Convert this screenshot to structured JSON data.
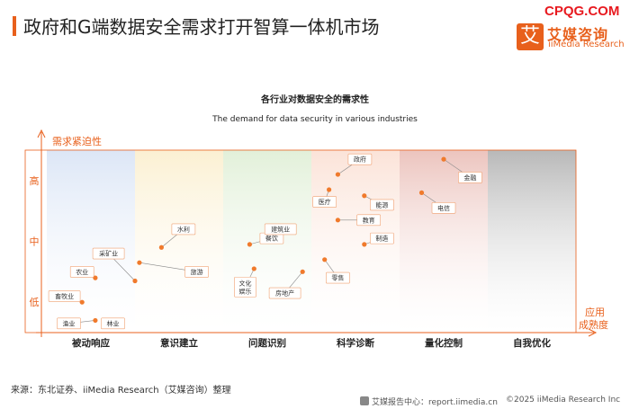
{
  "header": {
    "title": "政府和G端数据安全需求打开智算一体机市场",
    "watermark": "CPQG.COM",
    "logo_char": "艾",
    "logo_cn": "艾媒咨询",
    "logo_en": "iiMedia Research"
  },
  "colors": {
    "accent": "#e8601c",
    "band_1": "#dce6f6",
    "band_2": "#fbf0d2",
    "band_3": "#e2f0d9",
    "band_4": "#fbe3d8",
    "band_5": "#ecc4be",
    "band_6": "#b8b8b8",
    "point": "#f07a2c",
    "label_border": "#f0a070"
  },
  "chart_data": {
    "type": "scatter",
    "title": "各行业对数据安全的需求性",
    "subtitle": "The demand for data security in various industries",
    "ylabel": "需求紧迫性",
    "xlabel_line1": "应用",
    "xlabel_line2": "成熟度",
    "x_categories": [
      "被动响应",
      "意识建立",
      "问题识别",
      "科学诊断",
      "量化控制",
      "自我优化"
    ],
    "y_levels": [
      "低",
      "中",
      "高"
    ],
    "xlim": [
      0,
      6
    ],
    "ylim": [
      0,
      3
    ],
    "points": [
      {
        "name": "渔业",
        "x": 0.55,
        "y": 0.2,
        "lx": 0.25,
        "ly": 0.15
      },
      {
        "name": "畜牧业",
        "x": 0.4,
        "y": 0.5,
        "lx": 0.2,
        "ly": 0.6
      },
      {
        "name": "林业",
        "x": 0.8,
        "y": 0.2,
        "lx": 0.75,
        "ly": 0.15
      },
      {
        "name": "农业",
        "x": 0.55,
        "y": 0.9,
        "lx": 0.4,
        "ly": 1.0
      },
      {
        "name": "采矿业",
        "x": 1.0,
        "y": 0.85,
        "lx": 0.7,
        "ly": 1.3
      },
      {
        "name": "水利",
        "x": 1.3,
        "y": 1.4,
        "lx": 1.55,
        "ly": 1.7
      },
      {
        "name": "旅游",
        "x": 1.05,
        "y": 1.15,
        "lx": 1.7,
        "ly": 1.0
      },
      {
        "name": "文化娱乐",
        "x": 2.35,
        "y": 1.05,
        "lx": 2.25,
        "ly": 0.75
      },
      {
        "name": "餐饮",
        "x": 2.3,
        "y": 1.45,
        "lx": 2.55,
        "ly": 1.55
      },
      {
        "name": "建筑业",
        "x": 2.55,
        "y": 1.75,
        "lx": 2.65,
        "ly": 1.7
      },
      {
        "name": "房地产",
        "x": 2.9,
        "y": 1.0,
        "lx": 2.7,
        "ly": 0.65
      },
      {
        "name": "政府",
        "x": 3.3,
        "y": 2.6,
        "lx": 3.55,
        "ly": 2.85
      },
      {
        "name": "医疗",
        "x": 3.2,
        "y": 2.35,
        "lx": 3.15,
        "ly": 2.15
      },
      {
        "name": "能源",
        "x": 3.6,
        "y": 2.25,
        "lx": 3.8,
        "ly": 2.1
      },
      {
        "name": "教育",
        "x": 3.3,
        "y": 1.85,
        "lx": 3.65,
        "ly": 1.85
      },
      {
        "name": "制造",
        "x": 3.6,
        "y": 1.45,
        "lx": 3.8,
        "ly": 1.55
      },
      {
        "name": "零售",
        "x": 3.15,
        "y": 1.2,
        "lx": 3.3,
        "ly": 0.9
      },
      {
        "name": "金融",
        "x": 4.5,
        "y": 2.85,
        "lx": 4.8,
        "ly": 2.55
      },
      {
        "name": "电信",
        "x": 4.25,
        "y": 2.3,
        "lx": 4.5,
        "ly": 2.05
      }
    ]
  },
  "footer": {
    "source": "来源：东北证券、iiMedia Research（艾媒咨询）整理",
    "report": "艾媒报告中心：report.iimedia.cn",
    "copyright": "©2025  iiMedia Research  Inc"
  }
}
